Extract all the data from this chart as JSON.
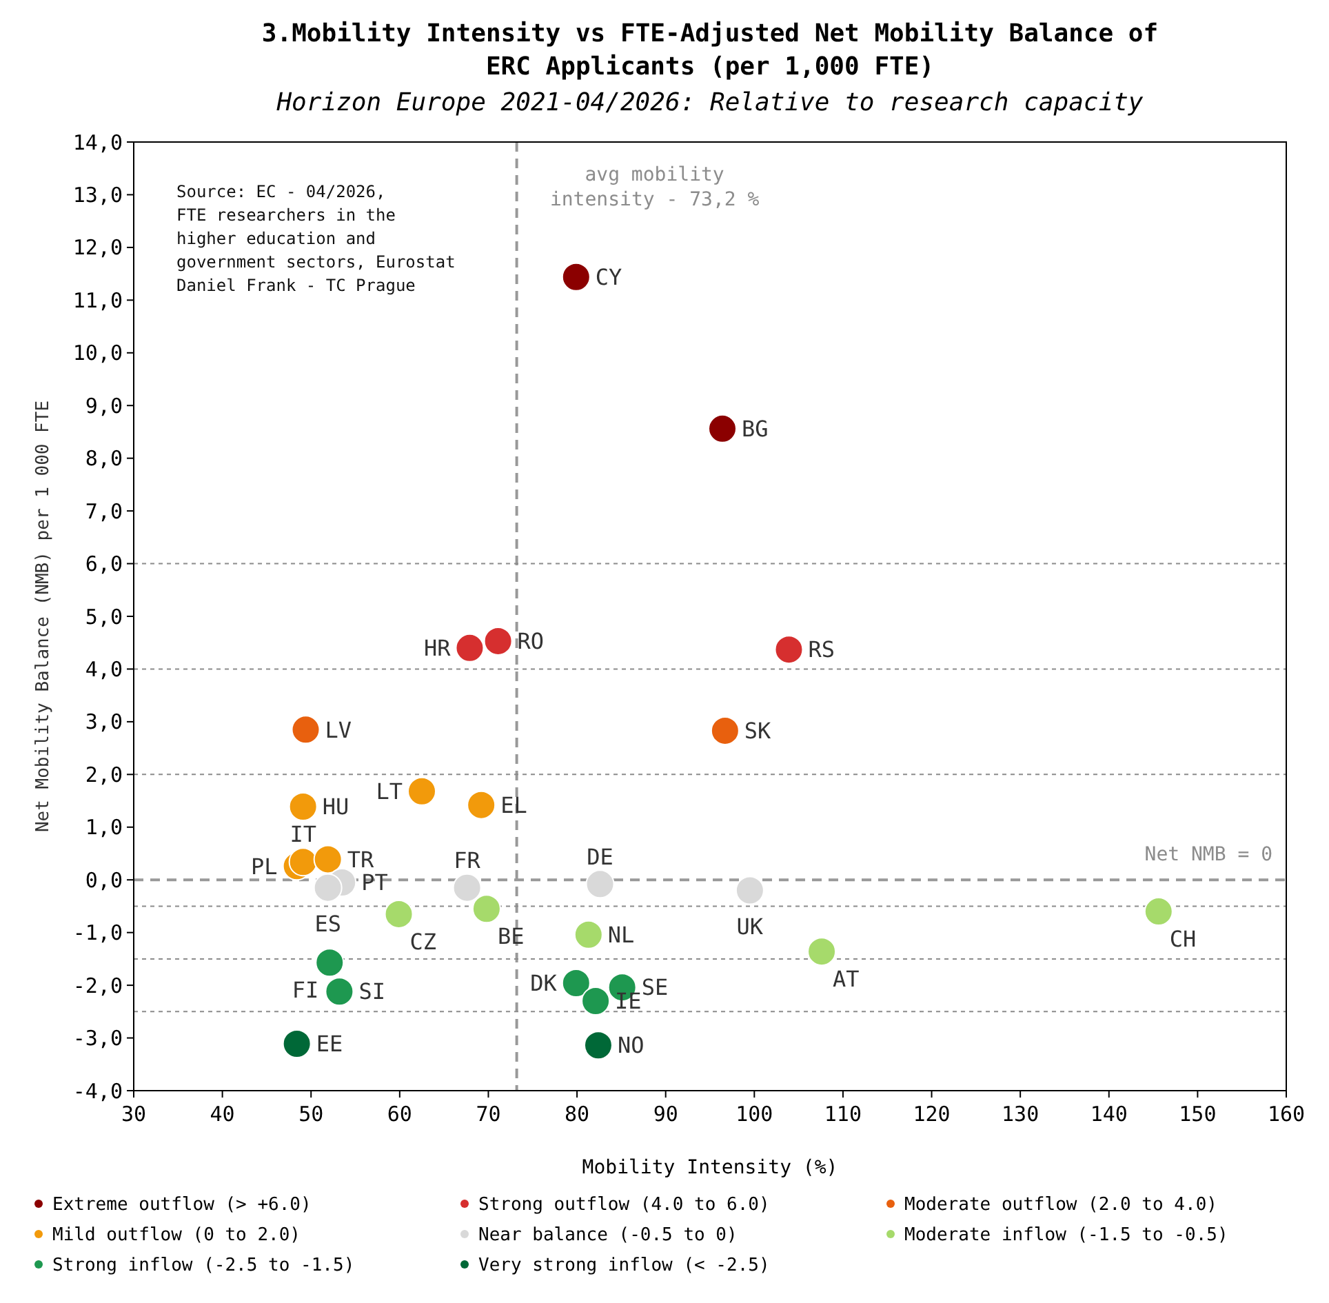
{
  "chart_data": {
    "type": "scatter",
    "title": "3.Mobility Intensity vs FTE-Adjusted Net Mobility Balance of ERC Applicants (per 1,000 FTE)",
    "subtitle": "Horizon Europe 2021-04/2026: Relative to research capacity",
    "xlabel": "Mobility Intensity (%)",
    "ylabel": "Net Mobility Balance (NMB) per 1 000 FTE",
    "xlim": [
      30,
      160
    ],
    "xticks": [
      30,
      40,
      50,
      60,
      70,
      80,
      90,
      100,
      110,
      120,
      130,
      140,
      150,
      160
    ],
    "ylim": [
      -4,
      14
    ],
    "yticks": [
      {
        "value": -4,
        "label": "-4,0"
      },
      {
        "value": -3,
        "label": "-3,0"
      },
      {
        "value": -2,
        "label": "-2,0"
      },
      {
        "value": -1,
        "label": "-1,0"
      },
      {
        "value": 0,
        "label": "0,0"
      },
      {
        "value": 1,
        "label": "1,0"
      },
      {
        "value": 2,
        "label": "2,0"
      },
      {
        "value": 3,
        "label": "3,0"
      },
      {
        "value": 4,
        "label": "4,0"
      },
      {
        "value": 5,
        "label": "5,0"
      },
      {
        "value": 6,
        "label": "6,0"
      },
      {
        "value": 7,
        "label": "7,0"
      },
      {
        "value": 8,
        "label": "8,0"
      },
      {
        "value": 9,
        "label": "9,0"
      },
      {
        "value": 10,
        "label": "10,0"
      },
      {
        "value": 11,
        "label": "11,0"
      },
      {
        "value": 12,
        "label": "12,0"
      },
      {
        "value": 13,
        "label": "13,0"
      },
      {
        "value": 14,
        "label": "14,0"
      }
    ],
    "marker": "circle",
    "legend": "bottom",
    "grid": false,
    "series": [
      {
        "name": "Extreme outflow (> +6.0)",
        "color": "#8b0000",
        "x": [
          79.9,
          96.4
        ],
        "values": [
          11.44,
          8.56
        ]
      },
      {
        "name": "Strong outflow (4.0 to 6.0)",
        "color": "#d62f2f",
        "x": [
          71.1,
          67.9,
          103.9
        ],
        "values": [
          4.53,
          4.4,
          4.37
        ]
      },
      {
        "name": "Moderate outflow (2.0 to 4.0)",
        "color": "#e8600e",
        "x": [
          96.7,
          49.4
        ],
        "values": [
          2.83,
          2.85
        ]
      },
      {
        "name": "Mild outflow (0 to 2.0)",
        "color": "#f29a0b",
        "x": [
          49.1,
          62.5,
          69.2,
          48.4,
          49.1,
          51.9
        ],
        "values": [
          1.39,
          1.68,
          1.42,
          0.26,
          0.34,
          0.39
        ]
      },
      {
        "name": "Near balance (-0.5 to 0)",
        "color": "#d9d9d9",
        "x": [
          53.5,
          51.9,
          67.6,
          82.6,
          99.5
        ],
        "values": [
          -0.05,
          -0.15,
          -0.15,
          -0.08,
          -0.2
        ]
      },
      {
        "name": "Moderate inflow (-1.5 to -0.5)",
        "color": "#a6da6b",
        "x": [
          59.9,
          69.8,
          81.3,
          107.6,
          145.6
        ],
        "values": [
          -0.65,
          -0.55,
          -1.04,
          -1.36,
          -0.6
        ]
      },
      {
        "name": "Strong inflow (-2.5 to -1.5)",
        "color": "#1e9850",
        "x": [
          52.1,
          53.2,
          79.9,
          85.1,
          82.1
        ],
        "values": [
          -1.57,
          -2.12,
          -1.96,
          -2.04,
          -2.3
        ]
      },
      {
        "name": "Very strong inflow (< -2.5)",
        "color": "#006837",
        "x": [
          48.4,
          82.4
        ],
        "values": [
          -3.11,
          -3.14
        ]
      }
    ],
    "ref_lines": [
      {
        "axis": "x",
        "value": 73.2,
        "label": "avg mobility intensity - 73,2 %",
        "color": "#999999",
        "line_style": "dashed"
      },
      {
        "axis": "y",
        "value": 0,
        "label": "Net NMB = 0",
        "color": "#999999",
        "line_style": "dashed"
      },
      {
        "axis": "y",
        "value": 6,
        "color": "#8c8c8c",
        "line_style": "dotted"
      },
      {
        "axis": "y",
        "value": 4,
        "color": "#8c8c8c",
        "line_style": "dotted"
      },
      {
        "axis": "y",
        "value": 2,
        "color": "#8c8c8c",
        "line_style": "dotted"
      },
      {
        "axis": "y",
        "value": -0.5,
        "color": "#8c8c8c",
        "line_style": "dotted"
      },
      {
        "axis": "y",
        "value": -1.5,
        "color": "#8c8c8c",
        "line_style": "dotted"
      },
      {
        "axis": "y",
        "value": -2.5,
        "color": "#8c8c8c",
        "line_style": "dotted"
      }
    ],
    "annotations": [
      "Source: EC - 04/2026,\nFTE researchers in the\nhigher education and\ngovernment sectors, Eurostat\nDaniel Frank - TC Prague",
      {
        "text": "CY",
        "x": 79.9,
        "y": 11.44
      },
      {
        "text": "BG",
        "x": 96.4,
        "y": 8.56
      },
      {
        "text": "RO",
        "x": 71.1,
        "y": 4.53
      },
      {
        "text": "HR",
        "x": 67.9,
        "y": 4.4
      },
      {
        "text": "RS",
        "x": 103.9,
        "y": 4.37
      },
      {
        "text": "SK",
        "x": 96.7,
        "y": 2.83
      },
      {
        "text": "LV",
        "x": 49.4,
        "y": 2.85
      },
      {
        "text": "HU",
        "x": 49.1,
        "y": 1.39
      },
      {
        "text": "LT",
        "x": 62.5,
        "y": 1.68
      },
      {
        "text": "EL",
        "x": 69.2,
        "y": 1.42
      },
      {
        "text": "IT",
        "x": 49.1,
        "y": 0.34
      },
      {
        "text": "TR",
        "x": 51.9,
        "y": 0.39
      },
      {
        "text": "PL",
        "x": 48.4,
        "y": 0.26
      },
      {
        "text": "PT",
        "x": 53.5,
        "y": -0.05
      },
      {
        "text": "ES",
        "x": 51.9,
        "y": -0.15
      },
      {
        "text": "FR",
        "x": 67.6,
        "y": -0.15
      },
      {
        "text": "DE",
        "x": 82.6,
        "y": -0.08
      },
      {
        "text": "UK",
        "x": 99.5,
        "y": -0.2
      },
      {
        "text": "CZ",
        "x": 59.9,
        "y": -0.65
      },
      {
        "text": "BE",
        "x": 69.8,
        "y": -0.55
      },
      {
        "text": "NL",
        "x": 81.3,
        "y": -1.04
      },
      {
        "text": "AT",
        "x": 107.6,
        "y": -1.36
      },
      {
        "text": "CH",
        "x": 145.6,
        "y": -0.6
      },
      {
        "text": "FI",
        "x": 52.1,
        "y": -1.57
      },
      {
        "text": "SI",
        "x": 53.2,
        "y": -2.12
      },
      {
        "text": "DK",
        "x": 79.9,
        "y": -1.96
      },
      {
        "text": "SE",
        "x": 85.1,
        "y": -2.04
      },
      {
        "text": "IE",
        "x": 82.1,
        "y": -2.3
      },
      {
        "text": "EE",
        "x": 48.4,
        "y": -3.11
      },
      {
        "text": "NO",
        "x": 82.4,
        "y": -3.14
      }
    ]
  }
}
